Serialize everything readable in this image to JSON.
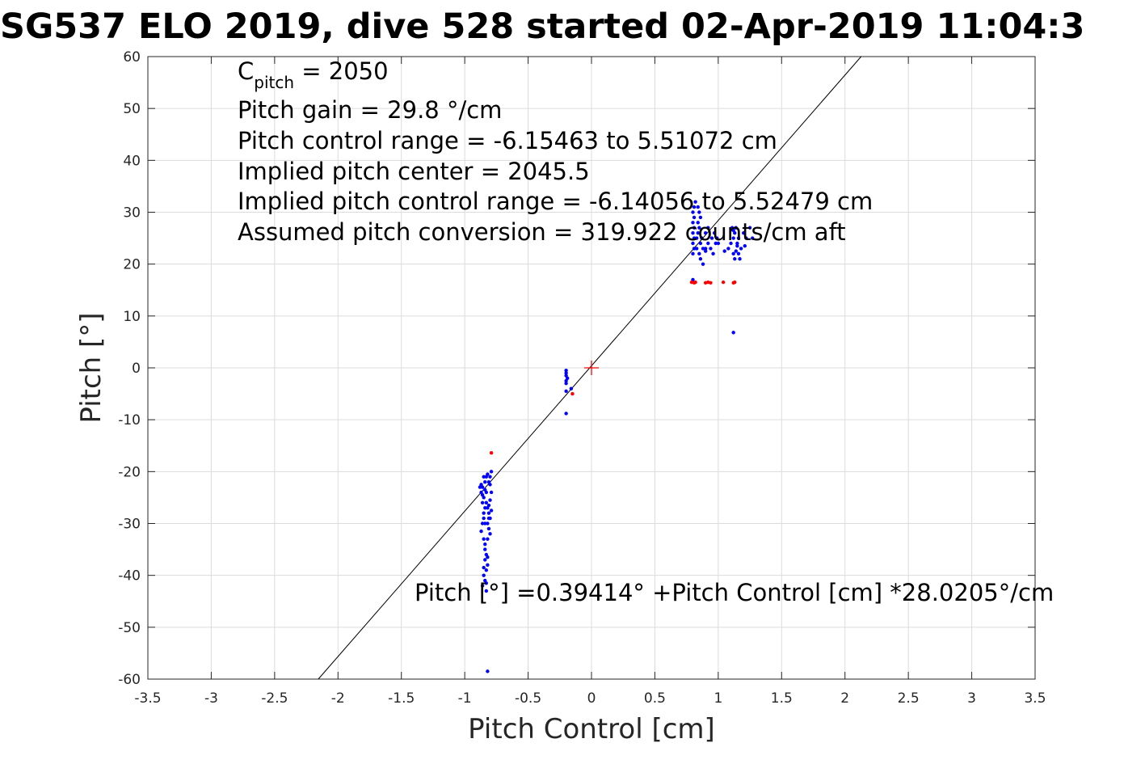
{
  "chart_data": {
    "type": "scatter",
    "title": "SG537 ELO 2019, dive 528 started 02-Apr-2019 11:04:3",
    "xlabel": "Pitch Control [cm]",
    "ylabel": "Pitch [°]",
    "xlim": [
      -3.5,
      3.5
    ],
    "ylim": [
      -60,
      60
    ],
    "xticks": [
      -3.5,
      -3,
      -2.5,
      -2,
      -1.5,
      -1,
      -0.5,
      0,
      0.5,
      1,
      1.5,
      2,
      2.5,
      3,
      3.5
    ],
    "xtick_labels": [
      "-3.5",
      "-3",
      "-2.5",
      "-2",
      "-1.5",
      "-1",
      "-0.5",
      "0",
      "0.5",
      "1",
      "1.5",
      "2",
      "2.5",
      "3",
      "3.5"
    ],
    "yticks": [
      -60,
      -50,
      -40,
      -30,
      -20,
      -10,
      0,
      10,
      20,
      30,
      40,
      50,
      60
    ],
    "ytick_labels": [
      "-60",
      "-50",
      "-40",
      "-30",
      "-20",
      "-10",
      "0",
      "10",
      "20",
      "30",
      "40",
      "50",
      "60"
    ],
    "grid": true,
    "annotations": {
      "c_pitch_main": "C",
      "c_pitch_sub": "pitch",
      "c_pitch_rest": " = 2050",
      "lines": [
        "Pitch gain = 29.8 °/cm",
        "Pitch control range = -6.15463 to 5.51072 cm",
        "Implied pitch center = 2045.5",
        "Implied pitch control range = -6.14056 to 5.52479 cm",
        "Assumed pitch conversion = 319.922 counts/cm aft"
      ],
      "fit_equation": "Pitch [°] =0.39414° +Pitch Control [cm] *28.0205°/cm"
    },
    "fit_line": {
      "intercept": 0.39414,
      "slope": 28.0205,
      "color": "#000000"
    },
    "center_marker": {
      "x": 0,
      "y": 0,
      "color": "#ff0000"
    },
    "series": [
      {
        "color": "#0000ff",
        "points": [
          [
            -0.85,
            -21
          ],
          [
            -0.84,
            -22
          ],
          [
            -0.86,
            -23
          ],
          [
            -0.83,
            -24
          ],
          [
            -0.85,
            -25
          ],
          [
            -0.87,
            -22.5
          ],
          [
            -0.82,
            -20.5
          ],
          [
            -0.8,
            -21
          ],
          [
            -0.81,
            -22
          ],
          [
            -0.84,
            -23.5
          ],
          [
            -0.86,
            -24.5
          ],
          [
            -0.83,
            -26
          ],
          [
            -0.82,
            -27
          ],
          [
            -0.81,
            -28
          ],
          [
            -0.8,
            -29
          ],
          [
            -0.82,
            -30
          ],
          [
            -0.81,
            -31
          ],
          [
            -0.8,
            -32
          ],
          [
            -0.82,
            -33
          ],
          [
            -0.84,
            -27
          ],
          [
            -0.85,
            -28
          ],
          [
            -0.86,
            -26
          ],
          [
            -0.88,
            -23
          ],
          [
            -0.87,
            -24
          ],
          [
            -0.83,
            -21
          ],
          [
            -0.79,
            -20
          ],
          [
            -0.8,
            -22.5
          ],
          [
            -0.79,
            -24
          ],
          [
            -0.8,
            -25.5
          ],
          [
            -0.81,
            -26.5
          ],
          [
            -0.79,
            -27.5
          ],
          [
            -0.81,
            -29
          ],
          [
            -0.84,
            -30
          ],
          [
            -0.85,
            -29
          ],
          [
            -0.86,
            -30
          ],
          [
            -0.87,
            -31.5
          ],
          [
            -0.85,
            -33
          ],
          [
            -0.84,
            -34
          ],
          [
            -0.83,
            -36
          ],
          [
            -0.84,
            -37
          ],
          [
            -0.82,
            -38
          ],
          [
            -0.83,
            -39
          ],
          [
            -0.85,
            -40
          ],
          [
            -0.84,
            -41
          ],
          [
            -0.86,
            -42
          ],
          [
            -0.83,
            -43
          ],
          [
            -0.84,
            -35
          ],
          [
            -0.82,
            -36.5
          ],
          [
            -0.85,
            -38.5
          ],
          [
            -0.83,
            -41.5
          ],
          [
            -0.82,
            -58.5
          ],
          [
            -0.2,
            -0.5
          ],
          [
            -0.2,
            -1
          ],
          [
            -0.2,
            -1.5
          ],
          [
            -0.2,
            -2.5
          ],
          [
            -0.2,
            -3
          ],
          [
            -0.19,
            -2
          ],
          [
            -0.2,
            -4.5
          ],
          [
            -0.2,
            -8.8
          ],
          [
            -0.16,
            -4
          ],
          [
            0.8,
            17
          ],
          [
            0.8,
            22
          ],
          [
            0.81,
            23
          ],
          [
            0.8,
            24
          ],
          [
            0.81,
            25
          ],
          [
            0.8,
            26
          ],
          [
            0.81,
            27
          ],
          [
            0.8,
            28
          ],
          [
            0.81,
            29
          ],
          [
            0.8,
            30
          ],
          [
            0.81,
            31
          ],
          [
            0.82,
            32
          ],
          [
            0.83,
            25
          ],
          [
            0.84,
            26
          ],
          [
            0.85,
            27
          ],
          [
            0.84,
            28
          ],
          [
            0.86,
            29
          ],
          [
            0.85,
            30
          ],
          [
            0.84,
            31
          ],
          [
            0.83,
            23
          ],
          [
            0.85,
            22
          ],
          [
            0.86,
            24
          ],
          [
            0.87,
            25
          ],
          [
            0.88,
            23
          ],
          [
            0.9,
            22.5
          ],
          [
            0.92,
            24
          ],
          [
            0.94,
            23
          ],
          [
            0.96,
            22
          ],
          [
            0.98,
            24
          ],
          [
            0.9,
            26
          ],
          [
            0.92,
            27
          ],
          [
            0.95,
            25
          ],
          [
            0.97,
            26
          ],
          [
            0.99,
            25
          ],
          [
            1.0,
            24
          ],
          [
            1.05,
            22.5
          ],
          [
            1.08,
            23
          ],
          [
            1.1,
            24
          ],
          [
            1.12,
            22
          ],
          [
            1.13,
            21
          ],
          [
            1.14,
            22.5
          ],
          [
            1.15,
            23.5
          ],
          [
            1.12,
            25
          ],
          [
            1.13,
            26
          ],
          [
            1.14,
            27
          ],
          [
            1.15,
            24
          ],
          [
            1.16,
            22
          ],
          [
            1.17,
            21
          ],
          [
            1.18,
            23
          ],
          [
            1.16,
            25
          ],
          [
            1.12,
            26.5
          ],
          [
            1.11,
            27
          ],
          [
            1.2,
            26
          ],
          [
            1.22,
            25
          ],
          [
            1.25,
            27
          ],
          [
            1.27,
            25
          ],
          [
            1.21,
            23.5
          ],
          [
            0.86,
            21
          ],
          [
            0.88,
            20
          ],
          [
            0.9,
            23
          ],
          [
            1.12,
            6.8
          ]
        ]
      },
      {
        "color": "#ff0000",
        "points": [
          [
            -0.79,
            -16.4
          ],
          [
            -0.15,
            -5
          ],
          [
            0.79,
            16.5
          ],
          [
            0.81,
            16.4
          ],
          [
            0.82,
            16.5
          ],
          [
            0.9,
            16.4
          ],
          [
            0.92,
            16.5
          ],
          [
            0.94,
            16.4
          ],
          [
            1.04,
            16.5
          ],
          [
            1.12,
            16.4
          ],
          [
            1.13,
            16.5
          ]
        ]
      }
    ]
  }
}
